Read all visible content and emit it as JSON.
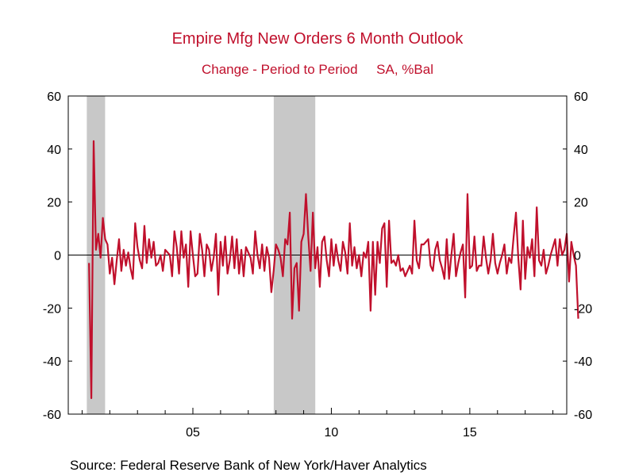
{
  "chart_data": {
    "type": "line",
    "title": "Empire Mfg New Orders 6 Month Outlook",
    "subtitle": "Change - Period to Period     SA, %Bal",
    "xlabel": "",
    "ylabel": "",
    "x_tick_labels": [
      "05",
      "10",
      "15"
    ],
    "x_tick_years": [
      2005,
      2010,
      2015
    ],
    "xlim": [
      2000.5,
      2018.5
    ],
    "ylim": [
      -60,
      60
    ],
    "y_ticks": [
      60,
      40,
      20,
      0,
      -20,
      -40,
      -60
    ],
    "zero_line": true,
    "recessions": [
      [
        2001.17,
        2001.83
      ],
      [
        2007.92,
        2009.42
      ]
    ],
    "colors": {
      "line": "#c0102c",
      "recession": "#c8c8c8",
      "title": "#c0102c"
    },
    "series": [
      {
        "start_year": 2001,
        "start_month": 4,
        "values": [
          -3,
          -54,
          43,
          2,
          8,
          -1,
          14,
          6,
          4,
          -7,
          -1,
          -11,
          -2,
          6,
          -6,
          2,
          -4,
          1,
          -5,
          -9,
          12,
          3,
          -2,
          -5,
          11,
          -3,
          6,
          -1,
          5,
          -4,
          -3,
          0,
          -6,
          2,
          1,
          0,
          -8,
          9,
          3,
          -7,
          9,
          -1,
          4,
          -12,
          9,
          0,
          -8,
          -7,
          8,
          2,
          -8,
          4,
          2,
          -6,
          -1,
          8,
          -15,
          5,
          -4,
          7,
          -7,
          -2,
          7,
          -5,
          6,
          -7,
          2,
          -8,
          3,
          1,
          -1,
          -7,
          9,
          0,
          -5,
          4,
          -6,
          3,
          -1,
          -14,
          -6,
          4,
          2,
          -1,
          -8,
          6,
          4,
          16,
          -24,
          -5,
          -3,
          -21,
          5,
          8,
          23,
          7,
          -6,
          16,
          -5,
          3,
          -12,
          5,
          7,
          -2,
          -8,
          6,
          -4,
          4,
          -2,
          -6,
          5,
          1,
          -7,
          12,
          -4,
          3,
          -5,
          0,
          -8,
          1,
          -1,
          5,
          -21,
          5,
          -15,
          5,
          -3,
          10,
          12,
          -12,
          13,
          -3,
          -2,
          -4,
          0,
          -6,
          -5,
          -8,
          -6,
          -4,
          -7,
          13,
          -2,
          -5,
          4,
          4,
          5,
          6,
          -4,
          -6,
          2,
          5,
          -2,
          -5,
          -9,
          6,
          -9,
          0,
          8,
          -8,
          -3,
          1,
          4,
          -16,
          23,
          -5,
          -4,
          7,
          -6,
          -4,
          -4,
          7,
          -1,
          -7,
          -2,
          8,
          -3,
          -7,
          -3,
          0,
          4,
          -7,
          -1,
          -3,
          7,
          16,
          -1,
          -13,
          13,
          -9,
          3,
          -1,
          6,
          -8,
          18,
          -2,
          -4,
          2,
          -7,
          -4,
          0,
          3,
          6,
          -4,
          6,
          0,
          2,
          8,
          -10,
          5,
          0,
          -4,
          -24
        ]
      }
    ]
  },
  "source": "Source:  Federal Reserve Bank of New York/Haver Analytics"
}
